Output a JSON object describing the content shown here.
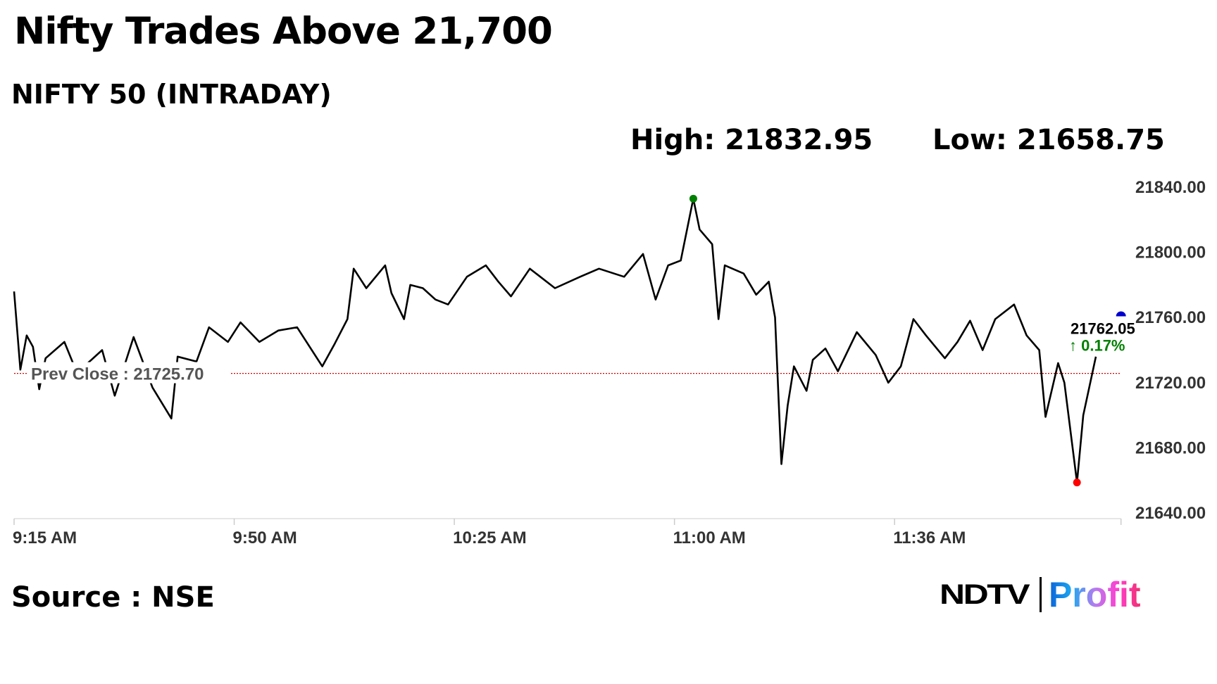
{
  "title": "Nifty Trades Above 21,700",
  "subtitle": "NIFTY 50 (INTRADAY)",
  "high_label": "High: 21832.95",
  "low_label": "Low: 21658.75",
  "source": "Source : NSE",
  "logo": {
    "left": "NDTV",
    "right": "Profit"
  },
  "chart_data": {
    "type": "line",
    "title": "NIFTY 50 (INTRADAY)",
    "xlim": [
      "09:15",
      "12:11"
    ],
    "ylim": [
      21640,
      21840
    ],
    "y_ticks": [
      "21840.00",
      "21800.00",
      "21760.00",
      "21720.00",
      "21680.00",
      "21640.00"
    ],
    "y_tick_values": [
      21840,
      21800,
      21760,
      21720,
      21680,
      21640
    ],
    "x_ticks": [
      "9:15 AM",
      "9:50 AM",
      "10:25 AM",
      "11:00 AM",
      "11:36 AM"
    ],
    "x_tick_times": [
      "09:15",
      "09:50",
      "10:25",
      "11:00",
      "11:35"
    ],
    "grid": false,
    "line_color": "#000000",
    "prev_close": {
      "label": "Prev Close : 21725.70",
      "value": 21725.7,
      "color": "#cc0000"
    },
    "high": {
      "value": 21832.95,
      "time": "11:03",
      "color": "#008000"
    },
    "low": {
      "value": 21658.75,
      "time": "12:04",
      "color": "#ff0000"
    },
    "last": {
      "value_label": "21762.05",
      "change_label": "↑ 0.17%",
      "value": 21762.05,
      "marker_color": "#0000cc",
      "change_color": "#008000"
    },
    "points": [
      [
        "09:15",
        21776
      ],
      [
        "09:16",
        21728
      ],
      [
        "09:17",
        21749
      ],
      [
        "09:18",
        21742
      ],
      [
        "09:19",
        21716
      ],
      [
        "09:20",
        21735
      ],
      [
        "09:23",
        21745
      ],
      [
        "09:25",
        21726
      ],
      [
        "09:29",
        21740
      ],
      [
        "09:31",
        21712
      ],
      [
        "09:34",
        21748
      ],
      [
        "09:37",
        21717
      ],
      [
        "09:40",
        21698
      ],
      [
        "09:41",
        21736
      ],
      [
        "09:44",
        21733
      ],
      [
        "09:46",
        21754
      ],
      [
        "09:49",
        21745
      ],
      [
        "09:51",
        21757
      ],
      [
        "09:54",
        21745
      ],
      [
        "09:57",
        21752
      ],
      [
        "10:00",
        21754
      ],
      [
        "10:04",
        21730
      ],
      [
        "10:06",
        21744
      ],
      [
        "10:08",
        21759
      ],
      [
        "10:09",
        21790
      ],
      [
        "10:11",
        21778
      ],
      [
        "10:14",
        21792
      ],
      [
        "10:15",
        21775
      ],
      [
        "10:17",
        21759
      ],
      [
        "10:18",
        21780
      ],
      [
        "10:20",
        21778
      ],
      [
        "10:22",
        21771
      ],
      [
        "10:24",
        21768
      ],
      [
        "10:27",
        21785
      ],
      [
        "10:30",
        21792
      ],
      [
        "10:32",
        21782
      ],
      [
        "10:34",
        21773
      ],
      [
        "10:37",
        21790
      ],
      [
        "10:41",
        21778
      ],
      [
        "10:45",
        21785
      ],
      [
        "10:48",
        21790
      ],
      [
        "10:52",
        21785
      ],
      [
        "10:55",
        21799
      ],
      [
        "10:57",
        21771
      ],
      [
        "10:59",
        21792
      ],
      [
        "11:01",
        21795
      ],
      [
        "11:03",
        21832.95
      ],
      [
        "11:04",
        21814
      ],
      [
        "11:06",
        21805
      ],
      [
        "11:07",
        21759
      ],
      [
        "11:08",
        21792
      ],
      [
        "11:11",
        21787
      ],
      [
        "11:13",
        21774
      ],
      [
        "11:15",
        21782
      ],
      [
        "11:16",
        21760
      ],
      [
        "11:17",
        21670
      ],
      [
        "11:18",
        21706
      ],
      [
        "11:19",
        21730
      ],
      [
        "11:21",
        21715
      ],
      [
        "11:22",
        21734
      ],
      [
        "11:24",
        21741
      ],
      [
        "11:26",
        21727
      ],
      [
        "11:29",
        21751
      ],
      [
        "11:32",
        21737
      ],
      [
        "11:34",
        21720
      ],
      [
        "11:36",
        21730
      ],
      [
        "11:38",
        21759
      ],
      [
        "11:40",
        21749
      ],
      [
        "11:43",
        21735
      ],
      [
        "11:45",
        21745
      ],
      [
        "11:47",
        21758
      ],
      [
        "11:49",
        21740
      ],
      [
        "11:51",
        21759
      ],
      [
        "11:54",
        21768
      ],
      [
        "11:56",
        21749
      ],
      [
        "11:58",
        21740
      ],
      [
        "11:59",
        21699
      ],
      [
        "12:01",
        21732
      ],
      [
        "12:02",
        21720
      ],
      [
        "12:04",
        21658.75
      ],
      [
        "12:05",
        21700
      ],
      [
        "12:07",
        21736
      ]
    ]
  }
}
